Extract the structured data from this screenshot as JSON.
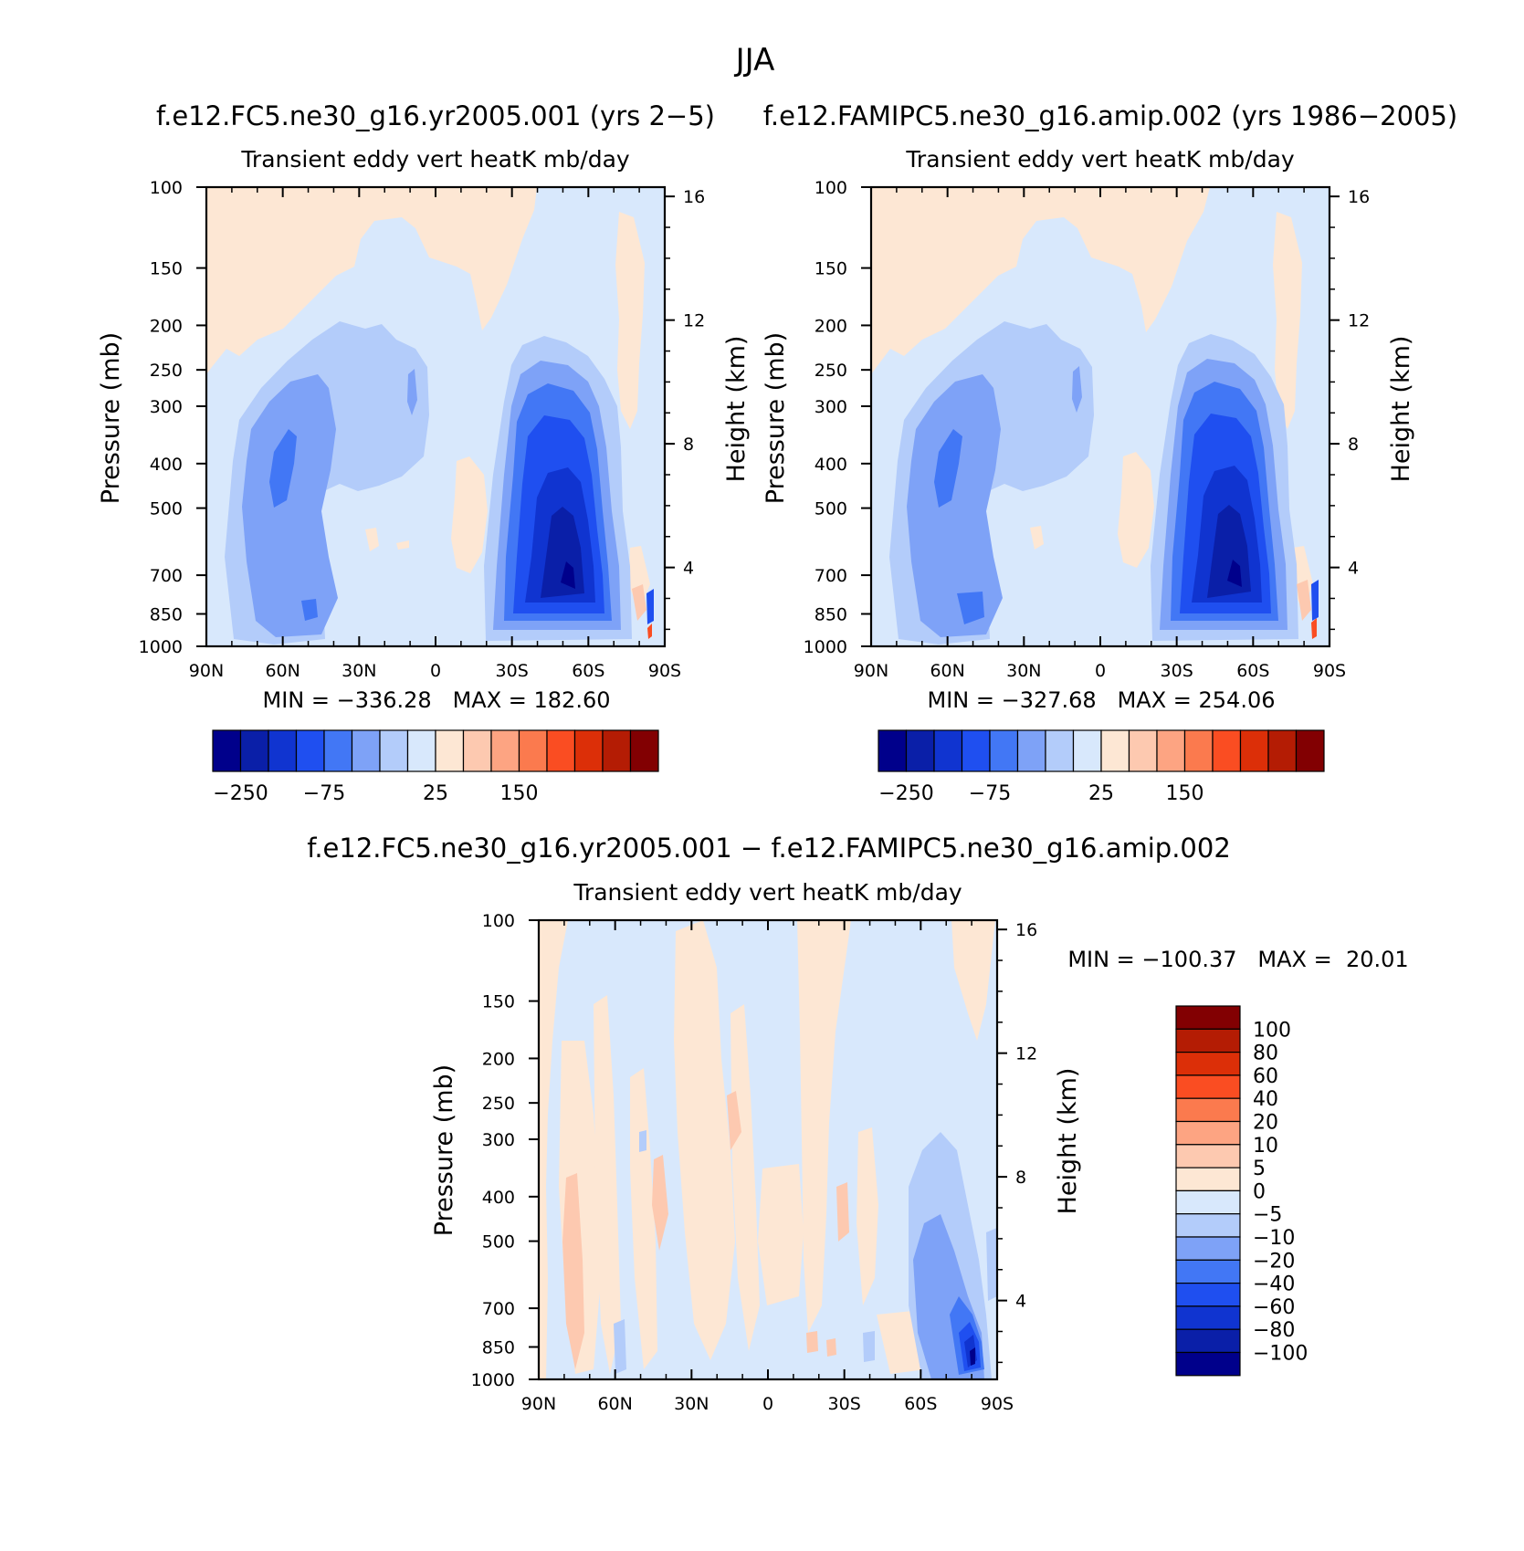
{
  "figure": {
    "title": "JJA"
  },
  "colors": {
    "abs_scale": [
      "#00008b",
      "#0a1fa8",
      "#1034d0",
      "#1f4ff0",
      "#4277f5",
      "#7ea2f7",
      "#b3ccfa",
      "#d8e8fc",
      "#fde7d4",
      "#fdc9b0",
      "#fda482",
      "#fb7a4e",
      "#fa4d22",
      "#dc2f08",
      "#b41c04",
      "#820002"
    ],
    "diff_scale": [
      "#00008b",
      "#0a1fa8",
      "#1034d0",
      "#1f4ff0",
      "#4277f5",
      "#7ea2f7",
      "#b3ccfa",
      "#d8e8fc",
      "#fde7d4",
      "#fdc9b0",
      "#fda482",
      "#fb7a4e",
      "#fa4d22",
      "#dc2f08",
      "#b41c04",
      "#820002"
    ]
  },
  "chart_data": [
    {
      "type": "heatmap",
      "id": "panel-a",
      "title": "f.e12.FC5.ne30_g16.yr2005.001 (yrs 2−5)",
      "subtitle": "Transient eddy vert heatK mb/day",
      "xlabel": "",
      "ylabel": "Pressure (mb)",
      "y2label": "Height (km)",
      "x_ticks": [
        "90N",
        "60N",
        "30N",
        "0",
        "30S",
        "60S",
        "90S"
      ],
      "y_ticks": [
        "100",
        "150",
        "200",
        "250",
        "300",
        "400",
        "500",
        "700",
        "850",
        "1000"
      ],
      "y2_ticks": [
        "16",
        "12",
        "8",
        "4"
      ],
      "stats": "MIN = −336.28   MAX = 182.60",
      "colorbar_labels": [
        "−250",
        "−75",
        "25",
        "150"
      ],
      "min": -336.28,
      "max": 182.6
    },
    {
      "type": "heatmap",
      "id": "panel-b",
      "title": "f.e12.FAMIPC5.ne30_g16.amip.002 (yrs 1986−2005)",
      "subtitle": "Transient eddy vert heatK mb/day",
      "xlabel": "",
      "ylabel": "Pressure (mb)",
      "y2label": "Height (km)",
      "x_ticks": [
        "90N",
        "60N",
        "30N",
        "0",
        "30S",
        "60S",
        "90S"
      ],
      "y_ticks": [
        "100",
        "150",
        "200",
        "250",
        "300",
        "400",
        "500",
        "700",
        "850",
        "1000"
      ],
      "y2_ticks": [
        "16",
        "12",
        "8",
        "4"
      ],
      "stats": "MIN = −327.68   MAX = 254.06",
      "colorbar_labels": [
        "−250",
        "−75",
        "25",
        "150"
      ],
      "min": -327.68,
      "max": 254.06
    },
    {
      "type": "heatmap",
      "id": "panel-diff",
      "title": "f.e12.FC5.ne30_g16.yr2005.001 − f.e12.FAMIPC5.ne30_g16.amip.002",
      "subtitle": "Transient eddy vert heatK mb/day",
      "xlabel": "",
      "ylabel": "Pressure (mb)",
      "y2label": "Height (km)",
      "x_ticks": [
        "90N",
        "60N",
        "30N",
        "0",
        "30S",
        "60S",
        "90S"
      ],
      "y_ticks": [
        "100",
        "150",
        "200",
        "250",
        "300",
        "400",
        "500",
        "700",
        "850",
        "1000"
      ],
      "y2_ticks": [
        "16",
        "12",
        "8",
        "4"
      ],
      "stats": "MIN = −100.37   MAX =  20.01",
      "colorbar_labels": [
        "100",
        "80",
        "60",
        "40",
        "20",
        "10",
        "5",
        "0",
        "−5",
        "−10",
        "−20",
        "−40",
        "−60",
        "−80",
        "−100"
      ],
      "min": -100.37,
      "max": 20.01
    }
  ]
}
